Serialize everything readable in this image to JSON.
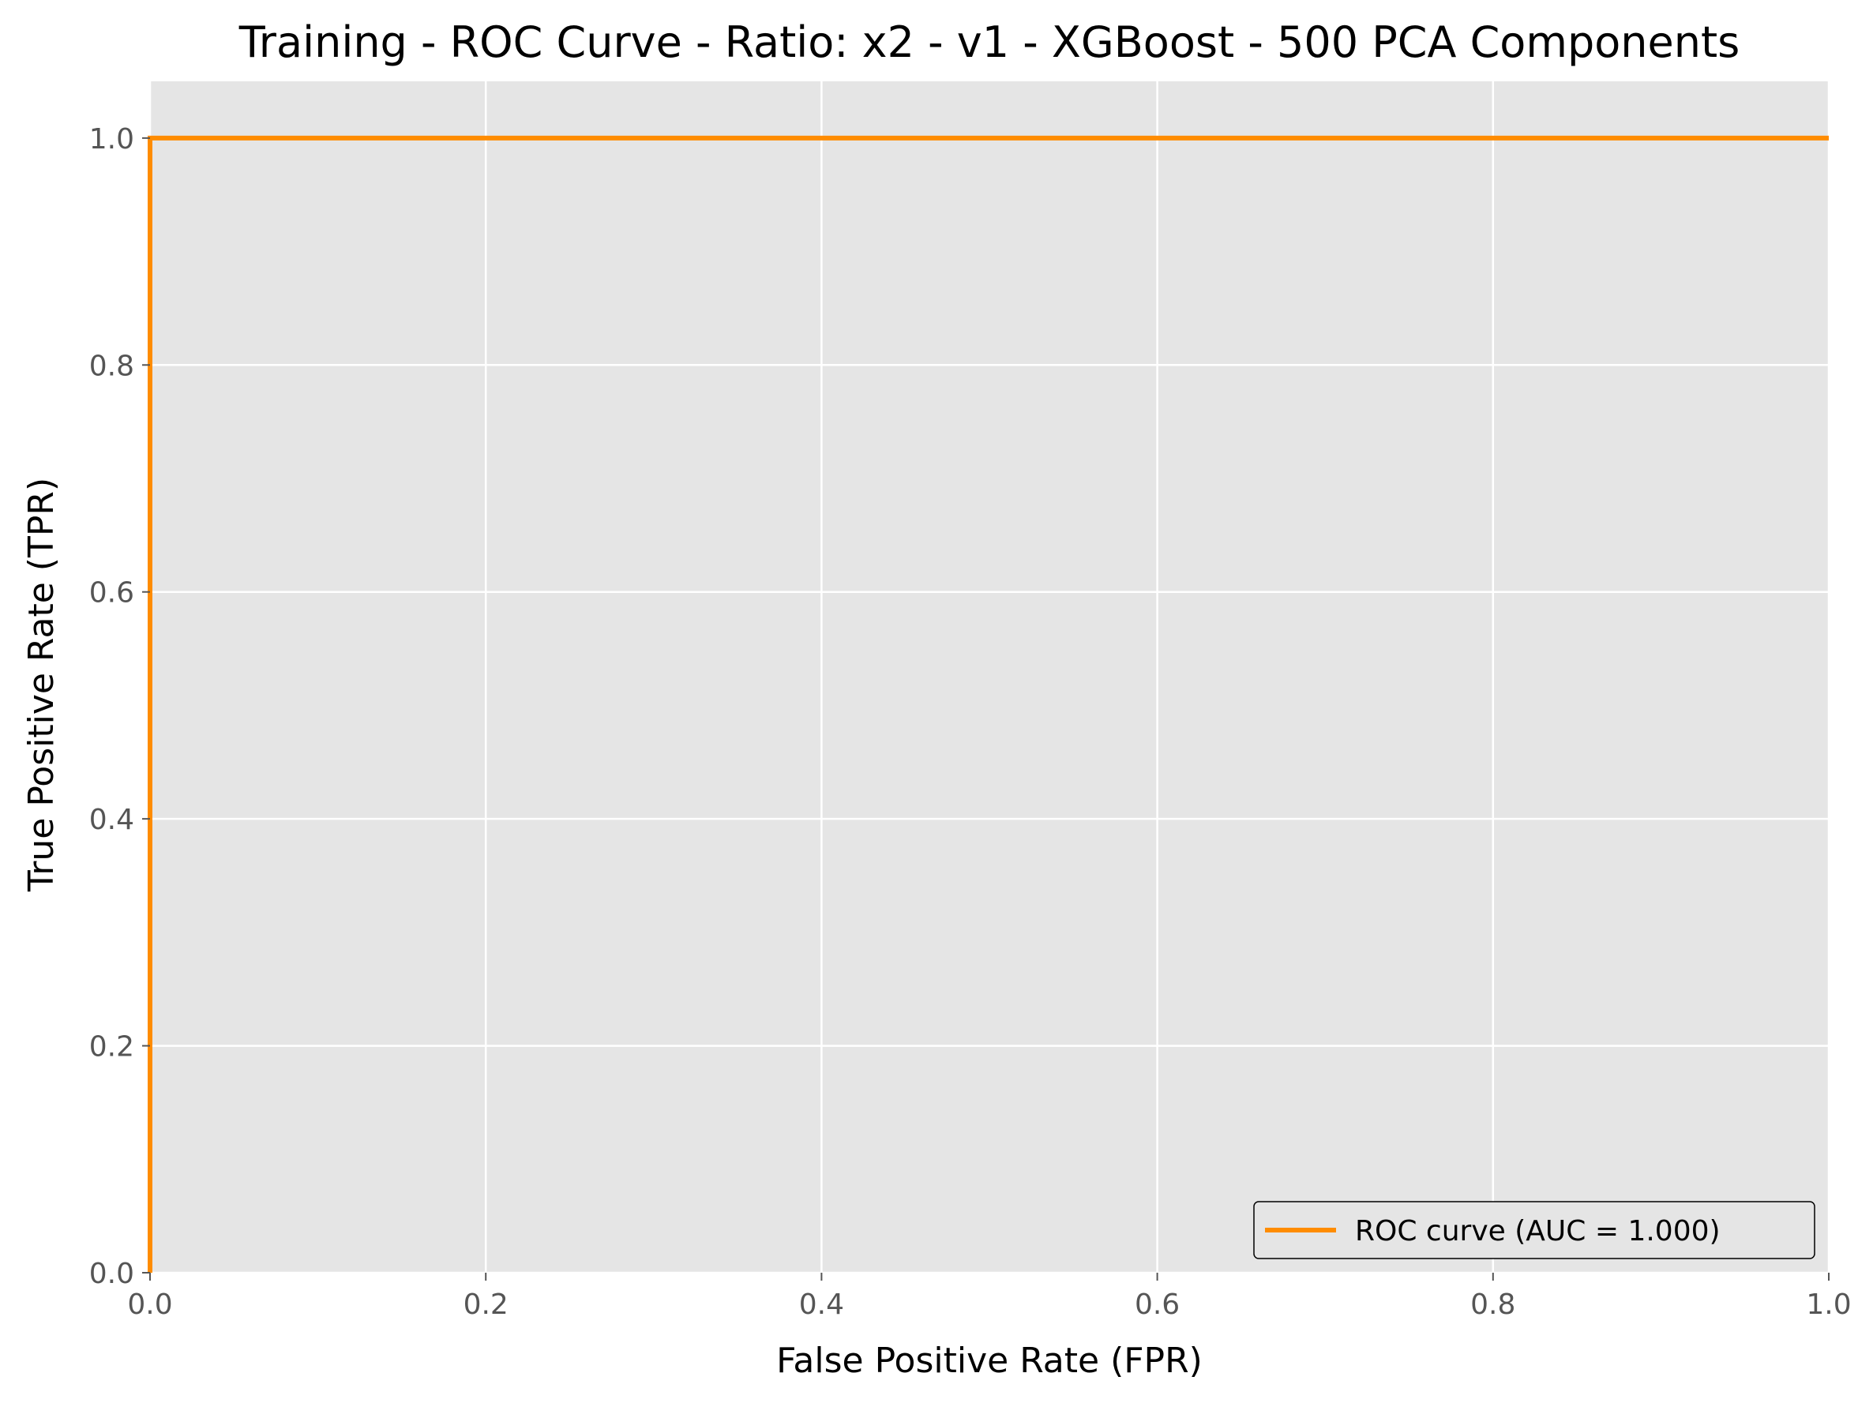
{
  "chart_data": {
    "type": "line",
    "title": "Training - ROC Curve - Ratio: x2 - v1 - XGBoost - 500 PCA Components",
    "xlabel": "False Positive Rate (FPR)",
    "ylabel": "True Positive Rate (TPR)",
    "xlim": [
      0.0,
      1.0
    ],
    "ylim": [
      0.0,
      1.05
    ],
    "xticks": [
      0.0,
      0.2,
      0.4,
      0.6,
      0.8,
      1.0
    ],
    "xtick_labels": [
      "0.0",
      "0.2",
      "0.4",
      "0.6",
      "0.8",
      "1.0"
    ],
    "yticks": [
      0.0,
      0.2,
      0.4,
      0.6,
      0.8,
      1.0
    ],
    "ytick_labels": [
      "0.0",
      "0.2",
      "0.4",
      "0.6",
      "0.8",
      "1.0"
    ],
    "grid": true,
    "legend_position": "lower-right",
    "background_color": "#e5e5e5",
    "series": [
      {
        "name": "ROC curve (AUC = 1.000)",
        "color": "#ff8c00",
        "points": [
          [
            0.0,
            0.0
          ],
          [
            0.0,
            1.0
          ],
          [
            1.0,
            1.0
          ]
        ]
      }
    ]
  }
}
